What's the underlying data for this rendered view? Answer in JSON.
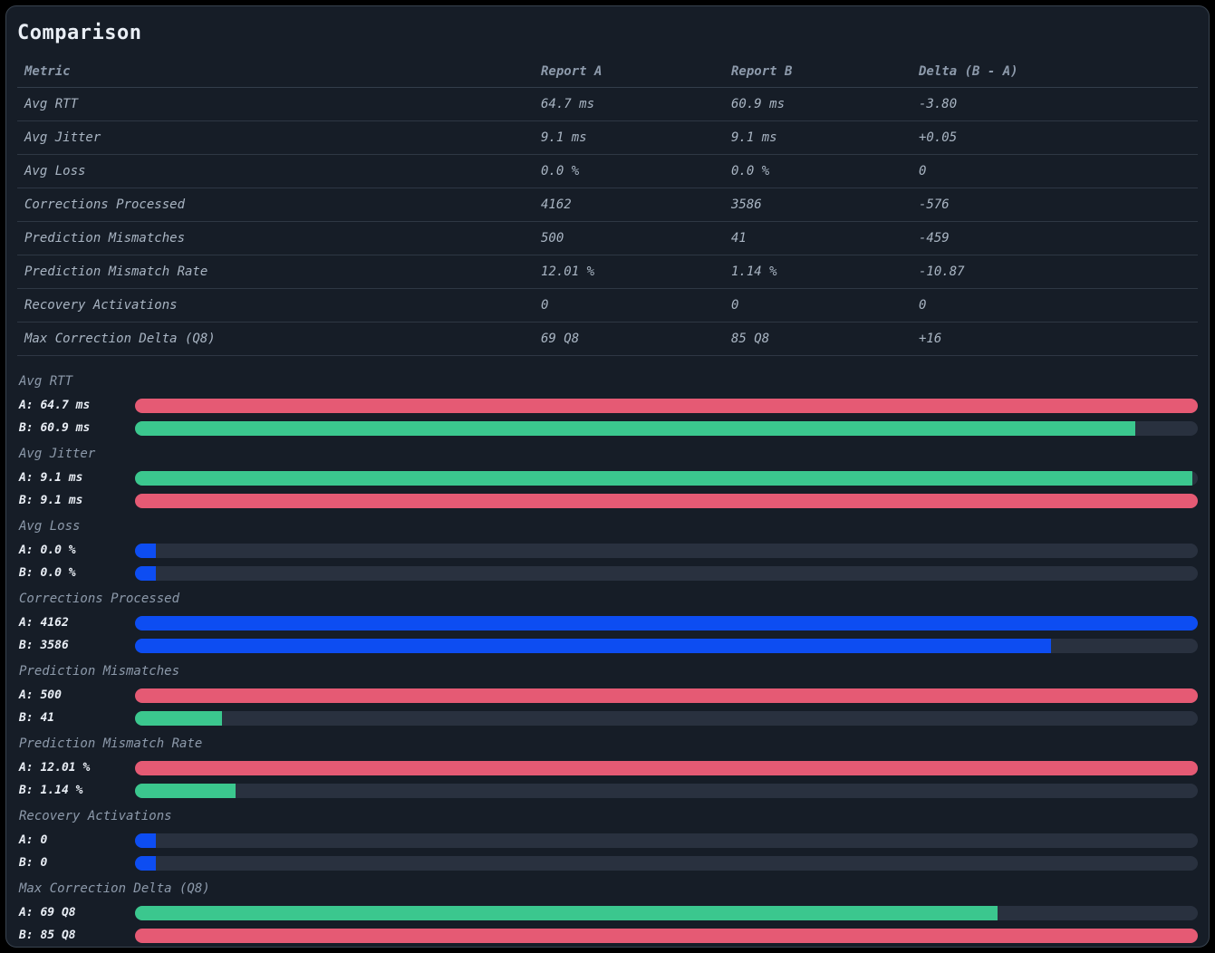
{
  "page": {
    "title": "Comparison"
  },
  "colors": {
    "bar_red": "#e55a74",
    "bar_green": "#3bc78e",
    "bar_blue": "#0d4df2",
    "bar_track": "#29313f",
    "delta_improved": "#3ed18d",
    "delta_worse": "#ef5670",
    "delta_neutral": "#a9b5c3"
  },
  "table": {
    "headers": [
      "Metric",
      "Report A",
      "Report B",
      "Delta (B - A)"
    ],
    "rows": [
      {
        "metric": "Avg RTT",
        "report_a": "64.7 ms",
        "report_b": "60.9 ms",
        "delta": "-3.80",
        "delta_tone": "improved"
      },
      {
        "metric": "Avg Jitter",
        "report_a": "9.1 ms",
        "report_b": "9.1 ms",
        "delta": "+0.05",
        "delta_tone": "worse"
      },
      {
        "metric": "Avg Loss",
        "report_a": "0.0 %",
        "report_b": "0.0 %",
        "delta": "0",
        "delta_tone": "neutral"
      },
      {
        "metric": "Corrections Processed",
        "report_a": "4162",
        "report_b": "3586",
        "delta": "-576",
        "delta_tone": "neutral"
      },
      {
        "metric": "Prediction Mismatches",
        "report_a": "500",
        "report_b": "41",
        "delta": "-459",
        "delta_tone": "improved"
      },
      {
        "metric": "Prediction Mismatch Rate",
        "report_a": "12.01 %",
        "report_b": "1.14 %",
        "delta": "-10.87",
        "delta_tone": "improved"
      },
      {
        "metric": "Recovery Activations",
        "report_a": "0",
        "report_b": "0",
        "delta": "0",
        "delta_tone": "neutral"
      },
      {
        "metric": "Max Correction Delta (Q8)",
        "report_a": "69 Q8",
        "report_b": "85 Q8",
        "delta": "+16",
        "delta_tone": "worse"
      }
    ]
  },
  "chart_data": {
    "type": "bar",
    "orientation": "horizontal",
    "legend": "paired A/B bars per metric; green = better, red = worse, blue = neutral/equal",
    "groups": [
      {
        "metric": "Avg RTT",
        "bars": [
          {
            "label": "A: 64.7 ms",
            "value": 64.7,
            "pct": 100,
            "color": "red"
          },
          {
            "label": "B: 60.9 ms",
            "value": 60.9,
            "pct": 94.1,
            "color": "green"
          }
        ]
      },
      {
        "metric": "Avg Jitter",
        "bars": [
          {
            "label": "A: 9.1 ms",
            "value": 9.1,
            "pct": 99.5,
            "color": "green"
          },
          {
            "label": "B: 9.1 ms",
            "value": 9.15,
            "pct": 100,
            "color": "red"
          }
        ]
      },
      {
        "metric": "Avg Loss",
        "bars": [
          {
            "label": "A: 0.0 %",
            "value": 0,
            "pct": 2,
            "color": "blue"
          },
          {
            "label": "B: 0.0 %",
            "value": 0,
            "pct": 2,
            "color": "blue"
          }
        ]
      },
      {
        "metric": "Corrections Processed",
        "bars": [
          {
            "label": "A: 4162",
            "value": 4162,
            "pct": 100,
            "color": "blue"
          },
          {
            "label": "B: 3586",
            "value": 3586,
            "pct": 86.2,
            "color": "blue"
          }
        ]
      },
      {
        "metric": "Prediction Mismatches",
        "bars": [
          {
            "label": "A: 500",
            "value": 500,
            "pct": 100,
            "color": "red"
          },
          {
            "label": "B: 41",
            "value": 41,
            "pct": 8.2,
            "color": "green"
          }
        ]
      },
      {
        "metric": "Prediction Mismatch Rate",
        "bars": [
          {
            "label": "A: 12.01 %",
            "value": 12.01,
            "pct": 100,
            "color": "red"
          },
          {
            "label": "B: 1.14 %",
            "value": 1.14,
            "pct": 9.5,
            "color": "green"
          }
        ]
      },
      {
        "metric": "Recovery Activations",
        "bars": [
          {
            "label": "A: 0",
            "value": 0,
            "pct": 2,
            "color": "blue"
          },
          {
            "label": "B: 0",
            "value": 0,
            "pct": 2,
            "color": "blue"
          }
        ]
      },
      {
        "metric": "Max Correction Delta (Q8)",
        "bars": [
          {
            "label": "A: 69 Q8",
            "value": 69,
            "pct": 81.2,
            "color": "green"
          },
          {
            "label": "B: 85 Q8",
            "value": 85,
            "pct": 100,
            "color": "red"
          }
        ]
      }
    ]
  }
}
